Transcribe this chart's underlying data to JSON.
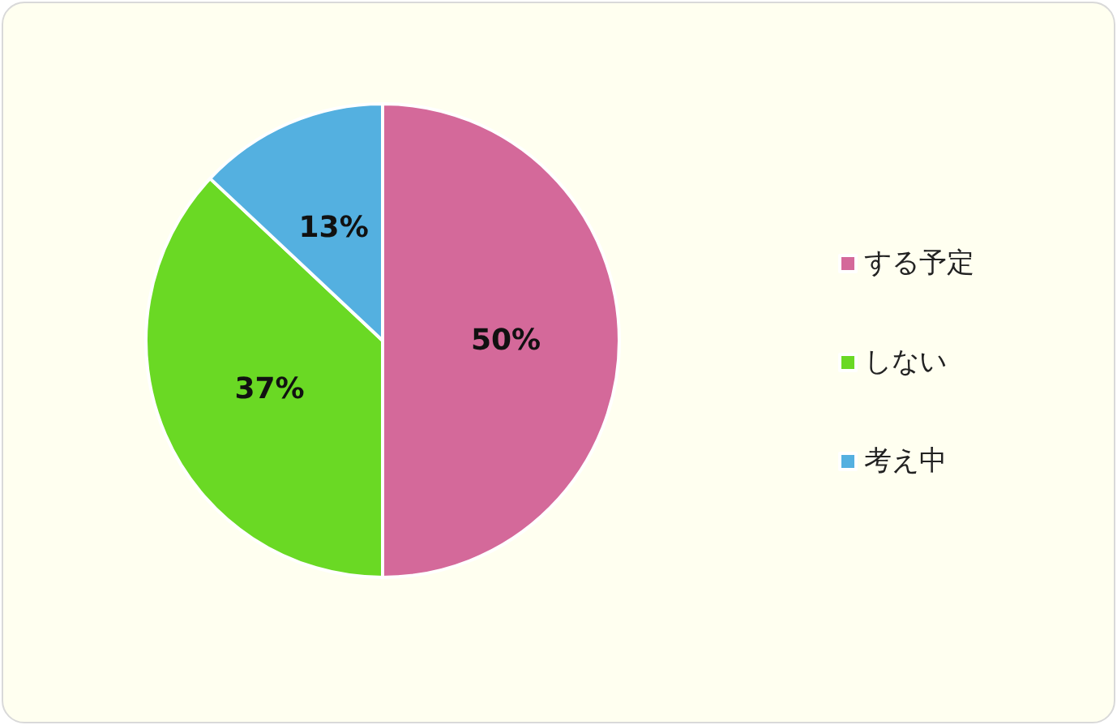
{
  "chart_data": {
    "type": "pie",
    "categories": [
      "する予定",
      "しない",
      "考え中"
    ],
    "values": [
      50,
      37,
      13
    ],
    "colors": [
      "#d4699a",
      "#6ad924",
      "#54b0e0"
    ],
    "value_labels": [
      "50%",
      "37%",
      "13%"
    ],
    "legend": "right"
  }
}
